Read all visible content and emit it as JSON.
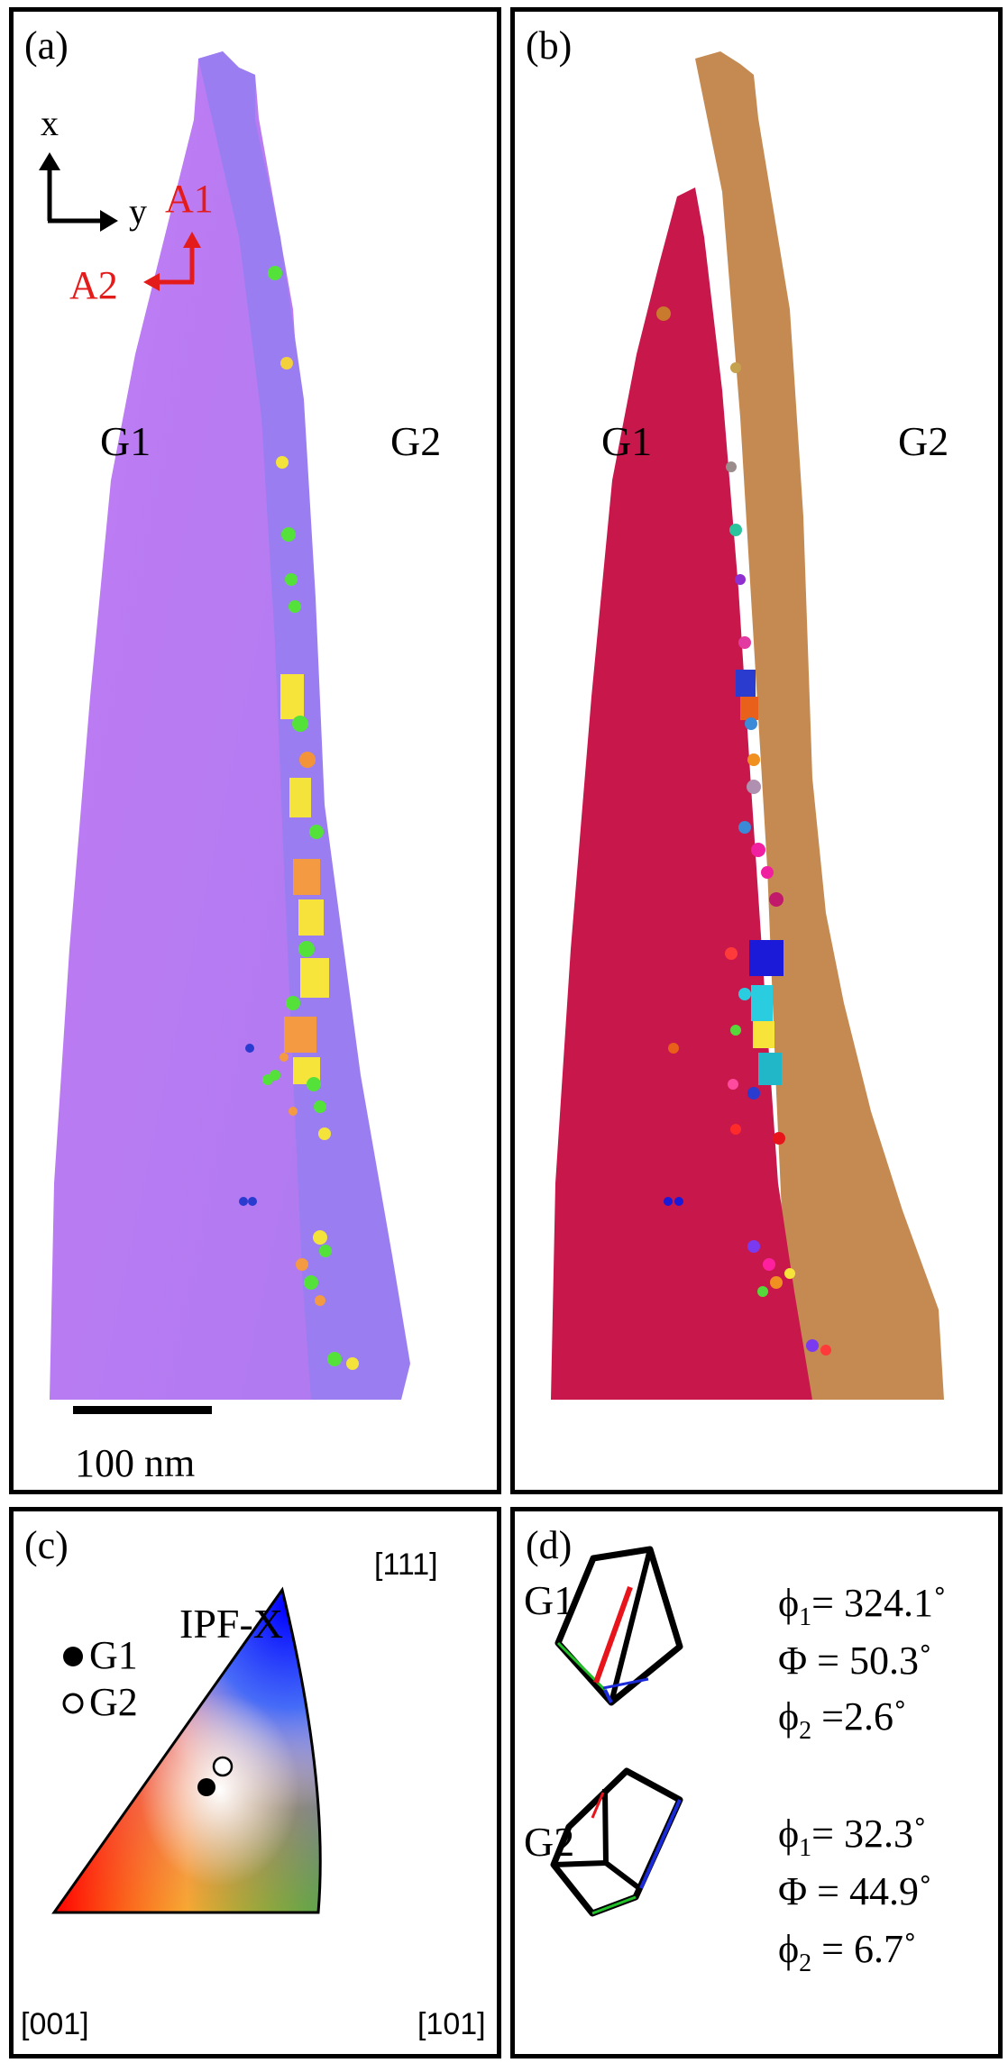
{
  "panels": {
    "a": {
      "label": "(a)",
      "grains": [
        "G1",
        "G2"
      ],
      "scale_bar": "100 nm",
      "axes": {
        "x": "x",
        "y": "y",
        "a1": "A1",
        "a2": "A2"
      },
      "colors": {
        "g1": "#b878f2",
        "g2": "#9b7cf0",
        "axes_black": "#000000",
        "axes_red": "#e41b1b"
      }
    },
    "b": {
      "label": "(b)",
      "grains": [
        "G1",
        "G2"
      ],
      "colors": {
        "g1": "#c8174b",
        "g2": "#c58a52"
      }
    },
    "c": {
      "label": "(c)",
      "title": "IPF-X",
      "legend": [
        {
          "name": "G1",
          "marker": "filled-circle"
        },
        {
          "name": "G2",
          "marker": "open-circle"
        }
      ],
      "corners": [
        "[001]",
        "[101]",
        "[111]"
      ]
    },
    "d": {
      "label": "(d)",
      "grains": [
        {
          "name": "G1",
          "phi1_label": "ϕ",
          "phi1_sub": "1",
          "phi1": "= 324.1˚",
          "Phi_label": "Φ",
          "Phi": " = 50.3˚",
          "phi2_label": "ϕ",
          "phi2_sub": "2",
          "phi2": " =2.6˚"
        },
        {
          "name": "G2",
          "phi1_label": "ϕ",
          "phi1_sub": "1",
          "phi1": "= 32.3˚",
          "Phi_label": "Φ",
          "Phi": " = 44.9˚",
          "phi2_label": "ϕ",
          "phi2_sub": "2",
          "phi2": " = 6.7˚"
        }
      ],
      "cube_edge_colors": {
        "x": "#e8141b",
        "y": "#22c12a",
        "z": "#1b2bd8"
      }
    }
  }
}
